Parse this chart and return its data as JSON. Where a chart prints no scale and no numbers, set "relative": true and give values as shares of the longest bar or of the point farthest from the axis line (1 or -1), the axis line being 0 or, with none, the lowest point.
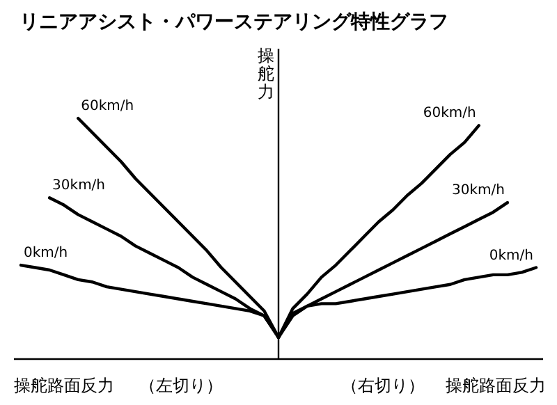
{
  "chart_data": {
    "type": "line",
    "relative": true,
    "title": "リニアアシスト・パワーステアリング特性グラフ",
    "xlabel": "操舵路面反力",
    "ylabel": "操舵力",
    "annotations": [
      "（左切り）",
      "（右切り）"
    ],
    "categories": [
      null,
      null,
      null,
      null,
      null,
      null,
      null,
      null,
      null,
      null,
      null,
      null,
      null,
      null,
      null,
      null,
      null,
      null,
      null,
      null,
      null,
      null,
      null,
      null,
      null,
      null,
      null,
      null,
      null,
      null,
      null,
      null,
      null,
      null,
      null,
      null,
      null
    ],
    "series": [
      {
        "name": "60km/h",
        "color": "#000000",
        "values": [
          null,
          null,
          null,
          null,
          1.0,
          0.94,
          0.88,
          0.82,
          0.75,
          0.69,
          0.63,
          0.57,
          0.51,
          0.45,
          0.38,
          0.32,
          0.26,
          0.2,
          0.09,
          null,
          null,
          null,
          null,
          null,
          null,
          null,
          null,
          null,
          null,
          null,
          null,
          null,
          null,
          null,
          null,
          null,
          null
        ]
      },
      {
        "name": "30km/h",
        "color": "#000000",
        "values": [
          null,
          null,
          0.67,
          0.64,
          0.6,
          0.57,
          0.54,
          0.51,
          0.47,
          0.44,
          0.41,
          0.38,
          0.34,
          0.31,
          0.28,
          0.25,
          0.21,
          0.18,
          0.09,
          null,
          null,
          null,
          null,
          null,
          null,
          null,
          null,
          null,
          null,
          null,
          null,
          null,
          null,
          null,
          null,
          null,
          null
        ]
      },
      {
        "name": "0km/h",
        "color": "#000000",
        "values": [
          0.39,
          0.38,
          0.37,
          0.35,
          0.33,
          0.32,
          0.3,
          0.29,
          0.28,
          0.27,
          0.26,
          0.25,
          0.24,
          0.23,
          0.22,
          0.21,
          0.2,
          0.18,
          0.09,
          null,
          null,
          null,
          null,
          null,
          null,
          null,
          null,
          null,
          null,
          null,
          null,
          null,
          null,
          null,
          null,
          null,
          null
        ]
      },
      {
        "name": "60km/h",
        "color": "#000000",
        "values": [
          null,
          null,
          null,
          null,
          null,
          null,
          null,
          null,
          null,
          null,
          null,
          null,
          null,
          null,
          null,
          null,
          null,
          null,
          0.09,
          0.21,
          0.27,
          0.34,
          0.39,
          0.45,
          0.51,
          0.57,
          0.62,
          0.68,
          0.73,
          0.79,
          0.85,
          0.9,
          0.97,
          null,
          null,
          null,
          null
        ]
      },
      {
        "name": "30km/h",
        "color": "#000000",
        "values": [
          null,
          null,
          null,
          null,
          null,
          null,
          null,
          null,
          null,
          null,
          null,
          null,
          null,
          null,
          null,
          null,
          null,
          null,
          0.09,
          0.18,
          0.22,
          0.25,
          0.28,
          0.31,
          0.34,
          0.37,
          0.4,
          0.43,
          0.46,
          0.49,
          0.52,
          0.55,
          0.58,
          0.61,
          0.65,
          null,
          null
        ]
      },
      {
        "name": "0km/h",
        "color": "#000000",
        "values": [
          null,
          null,
          null,
          null,
          null,
          null,
          null,
          null,
          null,
          null,
          null,
          null,
          null,
          null,
          null,
          null,
          null,
          null,
          0.09,
          0.19,
          0.22,
          0.23,
          0.23,
          0.24,
          0.25,
          0.26,
          0.27,
          0.28,
          0.29,
          0.3,
          0.31,
          0.33,
          0.34,
          0.35,
          0.35,
          0.36,
          0.38
        ]
      }
    ]
  }
}
